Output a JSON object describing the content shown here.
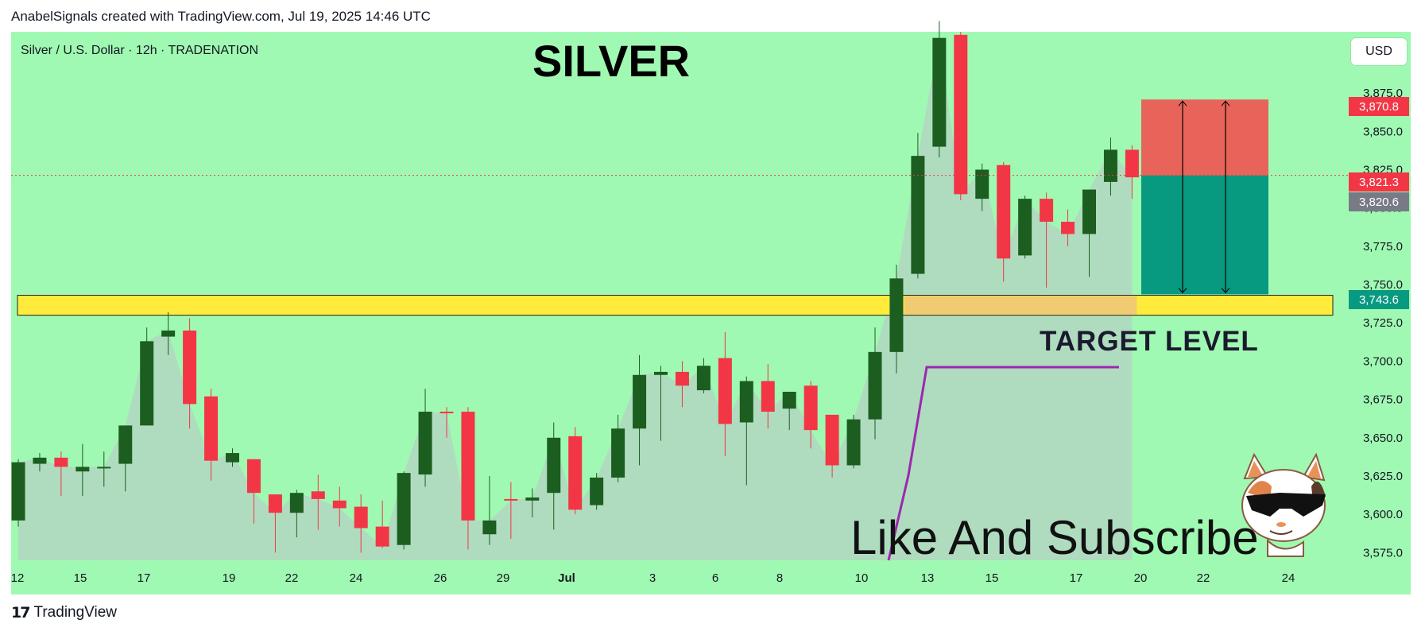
{
  "header": {
    "attribution": "AnabelSignals created with TradingView.com, Jul 19, 2025 14:46 UTC"
  },
  "footer": {
    "brand": "TradingView",
    "logo_text": "17"
  },
  "toolbar": {
    "currency_button": "USD"
  },
  "chart_data": {
    "type": "candlestick",
    "symbol_line": "Silver / U.S. Dollar · 12h · TRADENATION",
    "annotations": {
      "title": "SILVER",
      "target_label": "TARGET LEVEL",
      "call_to_action": "Like And Subscribe"
    },
    "colors": {
      "background": "#a0f9b2",
      "up_candle": "#1b5e20",
      "down_candle": "#f23645",
      "area_fill": "#b0d8c0",
      "target_zone": "#ffeb3b",
      "stop_zone": "#ef5350",
      "profit_zone": "#089981",
      "target_path": "#9c27b0"
    },
    "y_axis": {
      "ticks": [
        "3,875.0",
        "3,850.0",
        "3,825.0",
        "3,800.0",
        "3,775.0",
        "3,750.0",
        "3,725.0",
        "3,700.0",
        "3,675.0",
        "3,650.0",
        "3,625.0",
        "3,600.0",
        "3,575.0"
      ],
      "range": [
        3570,
        3915
      ]
    },
    "x_axis": {
      "ticks": [
        "12",
        "15",
        "17",
        "19",
        "22",
        "24",
        "26",
        "29",
        "Jul",
        "3",
        "6",
        "8",
        "10",
        "13",
        "15",
        "17",
        "20",
        "22",
        "24"
      ]
    },
    "price_labels": [
      {
        "value": "3,870.8",
        "price": 3870.8,
        "color": "#f23645"
      },
      {
        "value": "3,821.3",
        "price": 3821.3,
        "color": "#f23645"
      },
      {
        "value": "3,820.6",
        "price": 3820.6,
        "color": "#787b86"
      },
      {
        "value": "3,743.6",
        "price": 3743.6,
        "color": "#089981"
      }
    ],
    "current_price": 3821.3,
    "target_zone": {
      "low": 3730,
      "high": 3743
    },
    "position": {
      "stop": 3870.8,
      "entry": 3821.3,
      "target": 3743.6
    },
    "target_path": [
      [
        3570,
        3570
      ],
      [
        3700,
        3700
      ]
    ],
    "candles": [
      {
        "o": 3596,
        "h": 3636,
        "l": 3592,
        "c": 3634
      },
      {
        "o": 3633,
        "h": 3640,
        "l": 3628,
        "c": 3637
      },
      {
        "o": 3637,
        "h": 3641,
        "l": 3612,
        "c": 3631
      },
      {
        "o": 3628,
        "h": 3646,
        "l": 3612,
        "c": 3631
      },
      {
        "o": 3631,
        "h": 3641,
        "l": 3618,
        "c": 3631
      },
      {
        "o": 3633,
        "h": 3658,
        "l": 3615,
        "c": 3658
      },
      {
        "o": 3658,
        "h": 3722,
        "l": 3658,
        "c": 3713
      },
      {
        "o": 3716,
        "h": 3732,
        "l": 3704,
        "c": 3720
      },
      {
        "o": 3720,
        "h": 3728,
        "l": 3656,
        "c": 3672
      },
      {
        "o": 3677,
        "h": 3682,
        "l": 3622,
        "c": 3635
      },
      {
        "o": 3634,
        "h": 3643,
        "l": 3631,
        "c": 3640
      },
      {
        "o": 3636,
        "h": 3636,
        "l": 3594,
        "c": 3614
      },
      {
        "o": 3613,
        "h": 3613,
        "l": 3575,
        "c": 3601
      },
      {
        "o": 3601,
        "h": 3616,
        "l": 3585,
        "c": 3614
      },
      {
        "o": 3615,
        "h": 3626,
        "l": 3590,
        "c": 3610
      },
      {
        "o": 3609,
        "h": 3618,
        "l": 3592,
        "c": 3604
      },
      {
        "o": 3605,
        "h": 3613,
        "l": 3575,
        "c": 3591
      },
      {
        "o": 3592,
        "h": 3609,
        "l": 3578,
        "c": 3579
      },
      {
        "o": 3580,
        "h": 3628,
        "l": 3577,
        "c": 3627
      },
      {
        "o": 3626,
        "h": 3682,
        "l": 3618,
        "c": 3667
      },
      {
        "o": 3667,
        "h": 3670,
        "l": 3650,
        "c": 3666
      },
      {
        "o": 3667,
        "h": 3670,
        "l": 3577,
        "c": 3596
      },
      {
        "o": 3587,
        "h": 3625,
        "l": 3580,
        "c": 3596
      },
      {
        "o": 3610,
        "h": 3621,
        "l": 3584,
        "c": 3609
      },
      {
        "o": 3609,
        "h": 3617,
        "l": 3598,
        "c": 3611
      },
      {
        "o": 3614,
        "h": 3660,
        "l": 3590,
        "c": 3650
      },
      {
        "o": 3651,
        "h": 3657,
        "l": 3600,
        "c": 3603
      },
      {
        "o": 3606,
        "h": 3627,
        "l": 3603,
        "c": 3624
      },
      {
        "o": 3624,
        "h": 3665,
        "l": 3621,
        "c": 3656
      },
      {
        "o": 3656,
        "h": 3704,
        "l": 3632,
        "c": 3691
      },
      {
        "o": 3691,
        "h": 3697,
        "l": 3648,
        "c": 3693
      },
      {
        "o": 3693,
        "h": 3700,
        "l": 3670,
        "c": 3684
      },
      {
        "o": 3681,
        "h": 3702,
        "l": 3679,
        "c": 3697
      },
      {
        "o": 3702,
        "h": 3719,
        "l": 3638,
        "c": 3659
      },
      {
        "o": 3660,
        "h": 3690,
        "l": 3619,
        "c": 3687
      },
      {
        "o": 3687,
        "h": 3698,
        "l": 3656,
        "c": 3667
      },
      {
        "o": 3669,
        "h": 3680,
        "l": 3655,
        "c": 3680
      },
      {
        "o": 3684,
        "h": 3687,
        "l": 3643,
        "c": 3655
      },
      {
        "o": 3665,
        "h": 3665,
        "l": 3624,
        "c": 3632
      },
      {
        "o": 3632,
        "h": 3665,
        "l": 3630,
        "c": 3662
      },
      {
        "o": 3662,
        "h": 3722,
        "l": 3649,
        "c": 3706
      },
      {
        "o": 3706,
        "h": 3763,
        "l": 3692,
        "c": 3754
      },
      {
        "o": 3757,
        "h": 3849,
        "l": 3754,
        "c": 3834
      },
      {
        "o": 3840,
        "h": 3922,
        "l": 3833,
        "c": 3911
      },
      {
        "o": 3913,
        "h": 3915,
        "l": 3805,
        "c": 3809
      },
      {
        "o": 3806,
        "h": 3829,
        "l": 3798,
        "c": 3825
      },
      {
        "o": 3828,
        "h": 3830,
        "l": 3752,
        "c": 3767
      },
      {
        "o": 3769,
        "h": 3808,
        "l": 3767,
        "c": 3806
      },
      {
        "o": 3806,
        "h": 3810,
        "l": 3748,
        "c": 3791
      },
      {
        "o": 3791,
        "h": 3799,
        "l": 3775,
        "c": 3783
      },
      {
        "o": 3783,
        "h": 3812,
        "l": 3755,
        "c": 3812
      },
      {
        "o": 3817,
        "h": 3846,
        "l": 3808,
        "c": 3838
      },
      {
        "o": 3838,
        "h": 3841,
        "l": 3806,
        "c": 3820
      }
    ]
  }
}
